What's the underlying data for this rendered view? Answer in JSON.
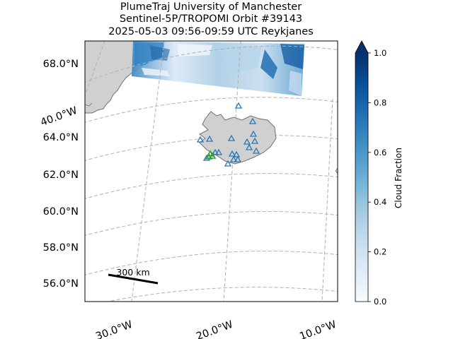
{
  "title": {
    "line1": "PlumeTraj    University of Manchester",
    "line2": "Sentinel-5P/TROPOMI Orbit #39143",
    "line3": "2025-05-03   09:56-09:59 UTC   Reykjanes"
  },
  "map": {
    "projection": "conic",
    "lat_labels": [
      "68.0°N",
      "64.0°N",
      "62.0°N",
      "60.0°N",
      "58.0°N",
      "56.0°N"
    ],
    "lon_labels": [
      "30.0°W",
      "20.0°W",
      "10.0°W"
    ],
    "meridian_left_label": "40.0°W",
    "gridlines": "dashed gray",
    "land_color": "#d0d0d0",
    "coast_color": "#707070",
    "volcano_marker_color": "#2878b8",
    "target_marker_color": "#2ca02c",
    "scale_bar_label": "300 km"
  },
  "colorbar": {
    "label": "Cloud Fraction",
    "ticks": [
      "0.0",
      "0.2",
      "0.4",
      "0.6",
      "0.8",
      "1.0"
    ],
    "min": 0.0,
    "max": 1.0,
    "colormap": "Blues",
    "extend": "max"
  }
}
